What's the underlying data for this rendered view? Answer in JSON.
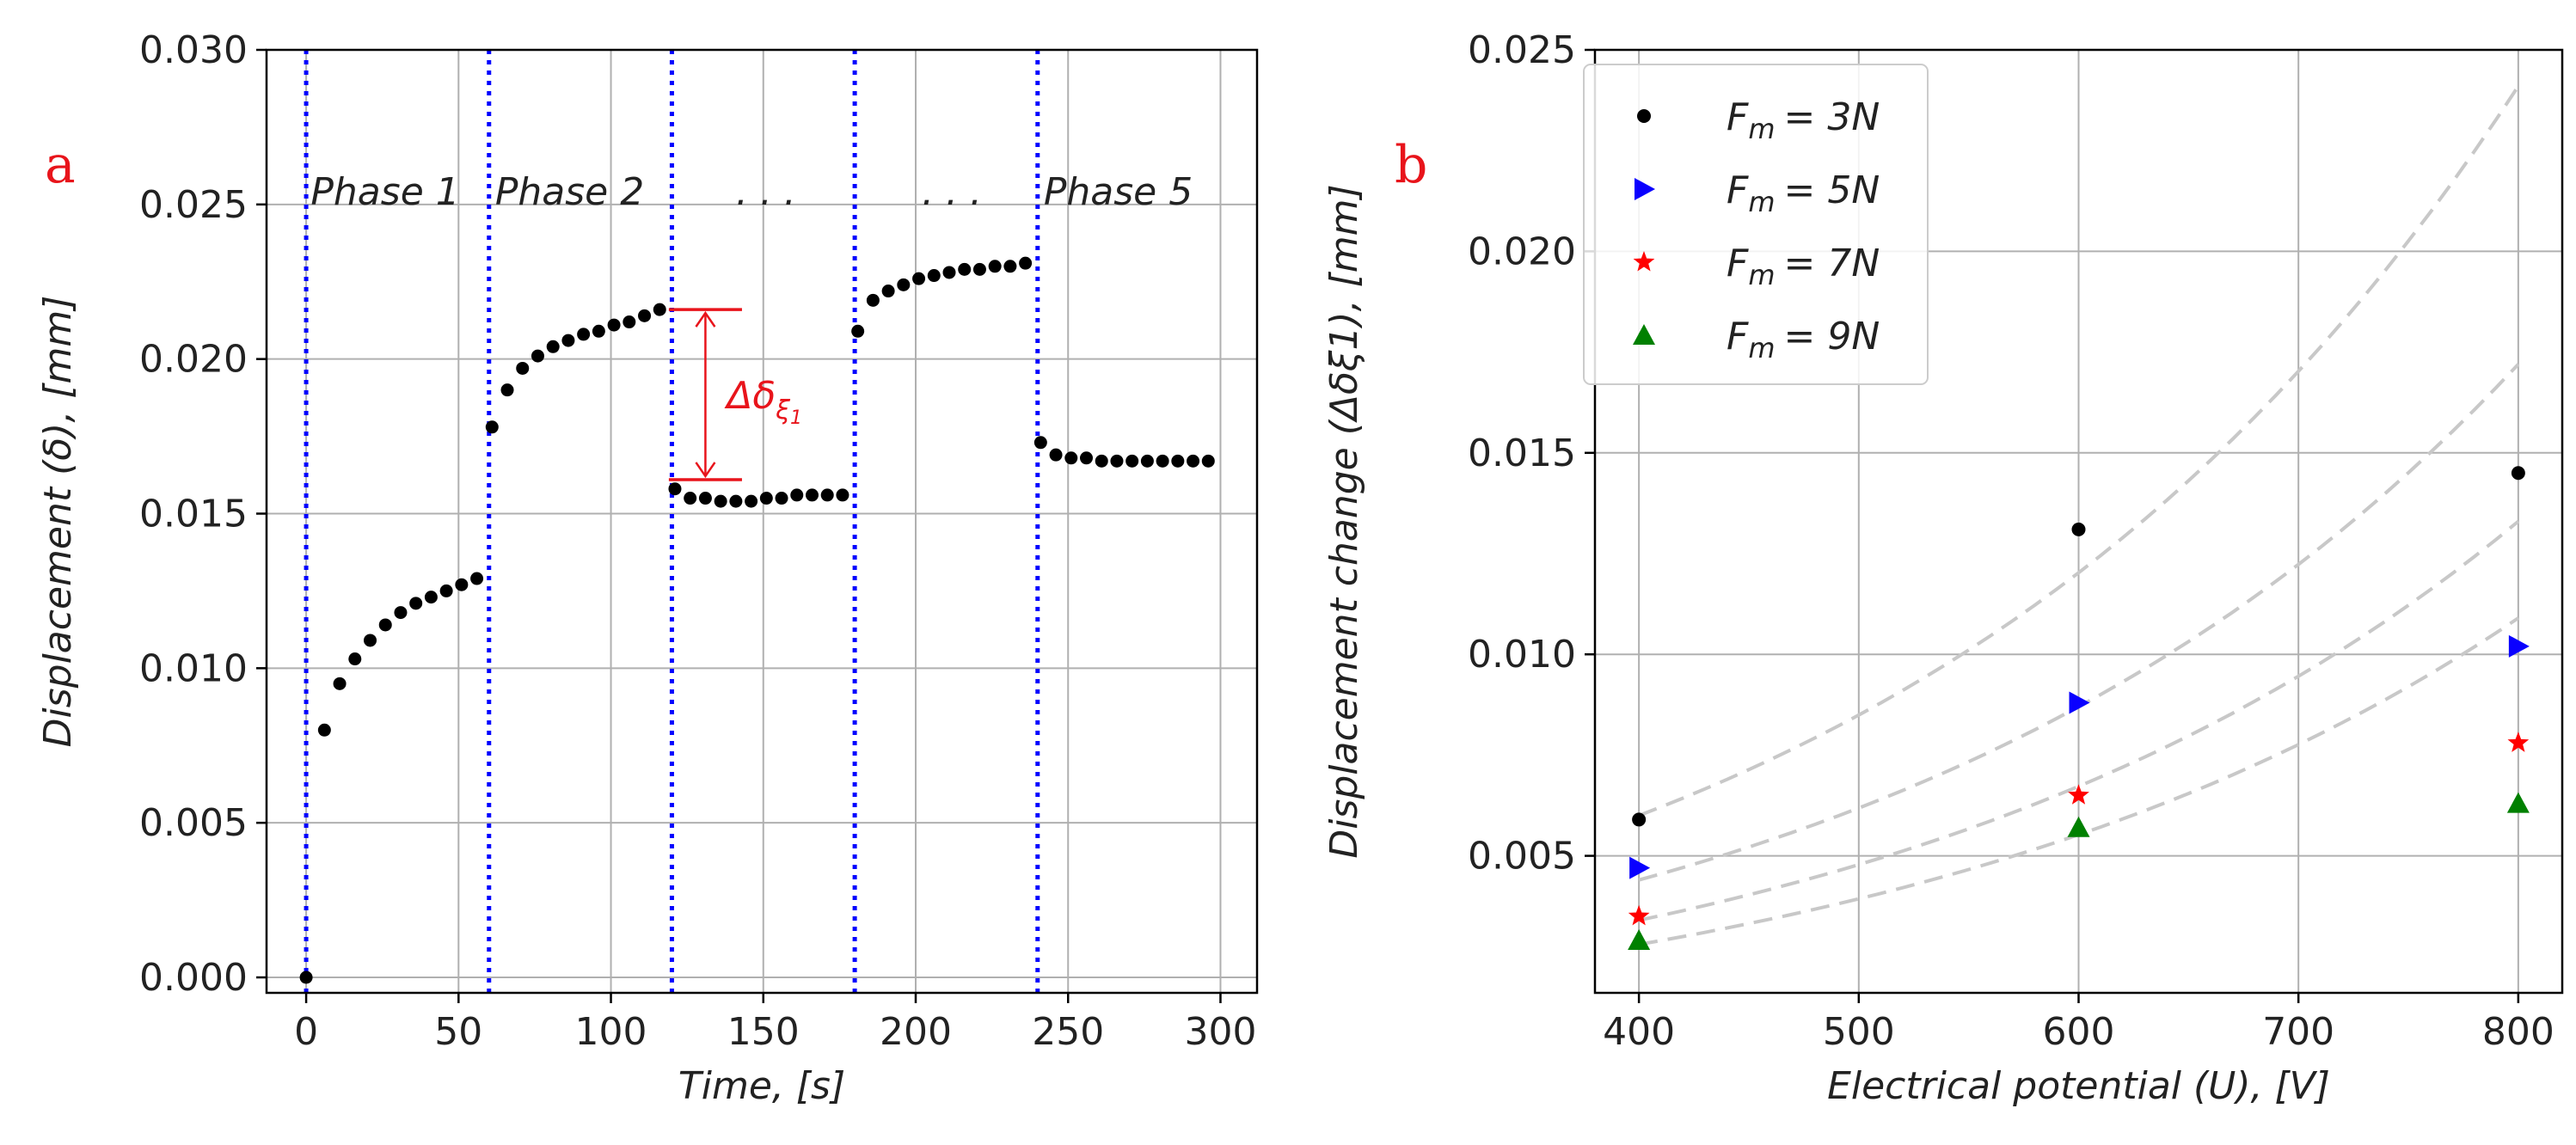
{
  "chart_data": [
    {
      "panel_label": "a",
      "type": "scatter",
      "xlabel": "Time, [s]",
      "ylabel": "Displacement (δ), [mm]",
      "xlim": [
        -13,
        312
      ],
      "ylim": [
        -0.0005,
        0.03
      ],
      "xticks": [
        0,
        50,
        100,
        150,
        200,
        250,
        300
      ],
      "xtick_labels": [
        "0",
        "50",
        "100",
        "150",
        "200",
        "250",
        "300"
      ],
      "yticks": [
        0.0,
        0.005,
        0.01,
        0.015,
        0.02,
        0.025,
        0.03
      ],
      "ytick_labels": [
        "0.000",
        "0.005",
        "0.010",
        "0.015",
        "0.020",
        "0.025",
        "0.030"
      ],
      "grid": true,
      "phase_lines": [
        0,
        60,
        120,
        180,
        240
      ],
      "phase_labels": [
        {
          "text": "Phase 1",
          "x": 1.5,
          "y": 0.0255
        },
        {
          "text": "Phase 2",
          "x": 62,
          "y": 0.0255
        },
        {
          "text": ". . .",
          "x": 141,
          "y": 0.0255
        },
        {
          "text": ". . .",
          "x": 202,
          "y": 0.0255
        },
        {
          "text": "Phase 5",
          "x": 242,
          "y": 0.0255
        }
      ],
      "annotation": {
        "text": "Δδ",
        "subscript": "ξ",
        "subscript2": "1",
        "x": 128,
        "y_top": 0.0216,
        "y_bottom": 0.0161
      },
      "series": [
        {
          "name": "Displacement",
          "color": "#000000",
          "x": [
            0,
            6,
            11,
            16,
            21,
            26,
            31,
            36,
            41,
            46,
            51,
            56,
            61,
            66,
            71,
            76,
            81,
            86,
            91,
            96,
            101,
            106,
            111,
            116,
            121,
            126,
            131,
            136,
            141,
            146,
            151,
            156,
            161,
            166,
            171,
            176,
            181,
            186,
            191,
            196,
            201,
            206,
            211,
            216,
            221,
            226,
            231,
            236,
            241,
            246,
            251,
            256,
            261,
            266,
            271,
            276,
            281,
            286,
            291,
            296
          ],
          "y": [
            0.0,
            0.008,
            0.0095,
            0.0103,
            0.0109,
            0.0114,
            0.0118,
            0.0121,
            0.0123,
            0.0125,
            0.0127,
            0.0129,
            0.0178,
            0.019,
            0.0197,
            0.0201,
            0.0204,
            0.0206,
            0.0208,
            0.0209,
            0.0211,
            0.0212,
            0.0214,
            0.0216,
            0.0158,
            0.0155,
            0.0155,
            0.0154,
            0.0154,
            0.0154,
            0.0155,
            0.0155,
            0.0156,
            0.0156,
            0.0156,
            0.0156,
            0.0209,
            0.0219,
            0.0222,
            0.0224,
            0.0226,
            0.0227,
            0.0228,
            0.0229,
            0.0229,
            0.023,
            0.023,
            0.0231,
            0.0173,
            0.0169,
            0.0168,
            0.0168,
            0.0167,
            0.0167,
            0.0167,
            0.0167,
            0.0167,
            0.0167,
            0.0167,
            0.0167
          ]
        }
      ]
    },
    {
      "panel_label": "b",
      "type": "scatter",
      "xlabel": "Electrical potential (U), [V]",
      "ylabel": "Displacement change (Δδξ1), [mm]",
      "xlim": [
        380,
        820
      ],
      "ylim": [
        0.0016,
        0.025
      ],
      "xticks": [
        400,
        500,
        600,
        700,
        800
      ],
      "xtick_labels": [
        "400",
        "500",
        "600",
        "700",
        "800"
      ],
      "yticks": [
        0.005,
        0.01,
        0.015,
        0.02,
        0.025
      ],
      "ytick_labels": [
        "0.005",
        "0.010",
        "0.015",
        "0.020",
        "0.025"
      ],
      "grid": true,
      "legend_position": "top-left",
      "categories": [
        400,
        600,
        800
      ],
      "series": [
        {
          "name": "F_m = 3N",
          "label": "= 3N",
          "marker": "dot",
          "color": "#000000",
          "values": [
            0.0059,
            0.0131,
            0.0145
          ],
          "fit": {
            "x": [
              400,
              800
            ],
            "y": [
              0.006,
              0.0241
            ]
          }
        },
        {
          "name": "F_m = 5N",
          "label": "= 5N",
          "marker": "triangle-right",
          "color": "#0a00ff",
          "values": [
            0.0047,
            0.0088,
            0.0102
          ],
          "fit": {
            "x": [
              400,
              800
            ],
            "y": [
              0.0044,
              0.0172
            ]
          }
        },
        {
          "name": "F_m = 7N",
          "label": "= 7N",
          "marker": "star",
          "color": "#ff0000",
          "values": [
            0.0035,
            0.0065,
            0.0078
          ],
          "fit": {
            "x": [
              400,
              800
            ],
            "y": [
              0.0034,
              0.0133
            ]
          }
        },
        {
          "name": "F_m = 9N",
          "label": "= 9N",
          "marker": "triangle-up",
          "color": "#008000",
          "values": [
            0.0029,
            0.0057,
            0.0063
          ],
          "fit": {
            "x": [
              400,
              800
            ],
            "y": [
              0.0028,
              0.0109
            ]
          }
        }
      ]
    }
  ],
  "legend_symbol": "F",
  "legend_subscript": "m"
}
